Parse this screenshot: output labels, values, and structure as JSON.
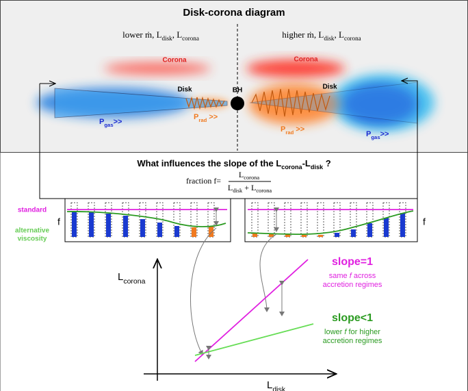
{
  "title": "Disk-corona diagram",
  "left_regime": [
    {
      "text": "lower  ṁ,  L"
    },
    {
      "text": "disk",
      "sub": true
    },
    {
      "text": ",  L"
    },
    {
      "text": "corona",
      "sub": true
    }
  ],
  "right_regime": [
    {
      "text": "higher  ṁ,  L"
    },
    {
      "text": "disk",
      "sub": true
    },
    {
      "text": ",  L"
    },
    {
      "text": "corona",
      "sub": true
    }
  ],
  "corona_left": "Corona",
  "corona_right": "Corona",
  "disk_left": "Disk",
  "disk_right": "Disk",
  "bh": "BH",
  "p_gas_left": [
    {
      "text": "P"
    },
    {
      "text": "gas",
      "sub": true
    },
    {
      "text": ">>"
    }
  ],
  "p_rad_left": [
    {
      "text": "P"
    },
    {
      "text": "rad",
      "sub": true
    },
    {
      "text": " >>"
    }
  ],
  "p_rad_right": [
    {
      "text": "P"
    },
    {
      "text": "rad",
      "sub": true
    },
    {
      "text": " >>"
    }
  ],
  "p_gas_right": [
    {
      "text": "P"
    },
    {
      "text": "gas",
      "sub": true
    },
    {
      "text": ">>"
    }
  ],
  "question": [
    {
      "text": "What influences the slope of the L"
    },
    {
      "text": "corona",
      "sub": true
    },
    {
      "text": "-L"
    },
    {
      "text": "disk",
      "sub": true
    },
    {
      "text": " ?"
    }
  ],
  "fraction_prefix": "fraction  f=",
  "fraction_numerator": [
    {
      "text": "L"
    },
    {
      "text": "corona",
      "sub": true
    }
  ],
  "fraction_denominator": [
    {
      "text": "L"
    },
    {
      "text": "disk",
      "sub": true
    },
    {
      "text": " + L"
    },
    {
      "text": "corona",
      "sub": true
    }
  ],
  "f_left": "f",
  "f_right": "f",
  "standard": "standard",
  "alternative": [
    "alternative",
    "viscosity"
  ],
  "y_axis_label": [
    {
      "text": "L"
    },
    {
      "text": "corona",
      "sub": true
    }
  ],
  "x_axis_label": [
    {
      "text": "L"
    },
    {
      "text": "disk",
      "sub": true
    }
  ],
  "slope1": "slope=1",
  "slope1_note": [
    [
      {
        "text": "same "
      },
      {
        "text": "f",
        "italic": true
      },
      {
        "text": " across"
      }
    ],
    [
      {
        "text": "accretion regimes"
      }
    ]
  ],
  "slope_lt1": "slope<1",
  "slope_lt1_note": [
    [
      {
        "text": "lower "
      },
      {
        "text": "f",
        "italic": true
      },
      {
        "text": " for higher"
      }
    ],
    [
      {
        "text": "accretion regimes"
      }
    ]
  ]
}
